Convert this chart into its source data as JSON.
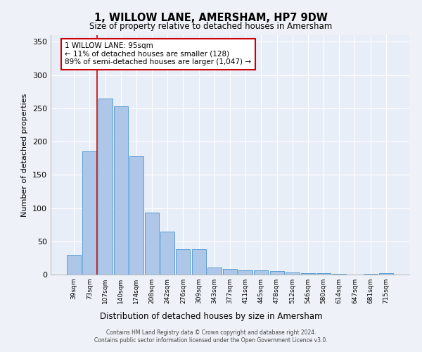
{
  "title": "1, WILLOW LANE, AMERSHAM, HP7 9DW",
  "subtitle": "Size of property relative to detached houses in Amersham",
  "xlabel": "Distribution of detached houses by size in Amersham",
  "ylabel": "Number of detached properties",
  "categories": [
    "39sqm",
    "73sqm",
    "107sqm",
    "140sqm",
    "174sqm",
    "208sqm",
    "242sqm",
    "276sqm",
    "309sqm",
    "343sqm",
    "377sqm",
    "411sqm",
    "445sqm",
    "478sqm",
    "512sqm",
    "546sqm",
    "580sqm",
    "614sqm",
    "647sqm",
    "681sqm",
    "715sqm"
  ],
  "values": [
    30,
    185,
    265,
    253,
    178,
    93,
    65,
    38,
    38,
    11,
    8,
    6,
    6,
    5,
    3,
    2,
    2,
    1,
    0,
    1,
    2
  ],
  "bar_color": "#aec6e8",
  "bar_edge_color": "#5a9fd4",
  "highlight_line_color": "#cc0000",
  "annotation_text": "1 WILLOW LANE: 95sqm\n← 11% of detached houses are smaller (128)\n89% of semi-detached houses are larger (1,047) →",
  "annotation_box_color": "#ffffff",
  "annotation_box_edge": "#cc0000",
  "ylim": [
    0,
    360
  ],
  "yticks": [
    0,
    50,
    100,
    150,
    200,
    250,
    300,
    350
  ],
  "footer_line1": "Contains HM Land Registry data © Crown copyright and database right 2024.",
  "footer_line2": "Contains public sector information licensed under the Open Government Licence v3.0.",
  "background_color": "#eef2f8",
  "plot_background": "#e8eef8"
}
